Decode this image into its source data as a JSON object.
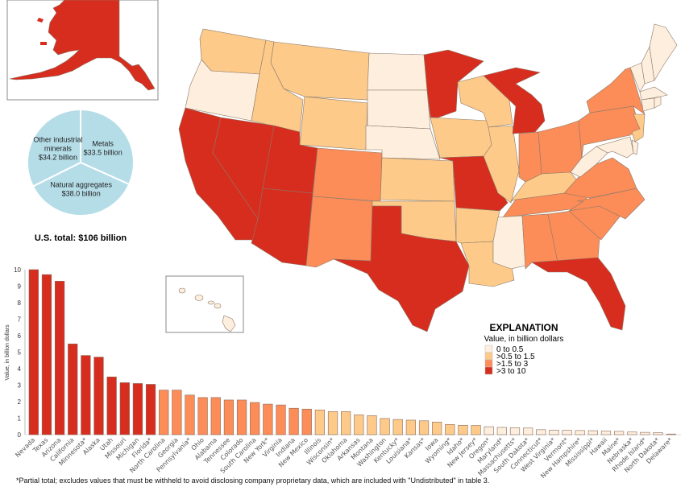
{
  "colors": {
    "class_0_0.5": "#feeedd",
    "class_0.5_1.5": "#fdca8a",
    "class_1.5_3": "#fc8c58",
    "class_3_10": "#d72d1f",
    "pie_fill": "#b5dde8"
  },
  "pie": {
    "slices": [
      {
        "name": "Metals",
        "label_line1": "Metals",
        "label_line2": "$33.5 billion",
        "value": 33.5
      },
      {
        "name": "Natural aggregates",
        "label_line1": "Natural aggregates",
        "label_line2": "$38.0 billion",
        "value": 38.0
      },
      {
        "name": "Other industrial minerals",
        "label_line1": "Other industrial",
        "label_line1b": "minerals",
        "label_line2": "$34.2 billion",
        "value": 34.2
      }
    ],
    "total_label": "U.S. total: $106 billion"
  },
  "legend": {
    "title": "EXPLANATION",
    "subtitle": "Value, in billion dollars",
    "items": [
      {
        "label": "0 to 0.5",
        "color": "#feeedd"
      },
      {
        "label": ">0.5 to 1.5",
        "color": "#fdca8a"
      },
      {
        "label": ">1.5 to 3",
        "color": "#fc8c58"
      },
      {
        "label": ">3 to 10",
        "color": "#d72d1f"
      }
    ]
  },
  "footnote": "*Partial total; excludes values that must be withheld to avoid disclosing company proprietary data, which are included with \"Undistributed\" in table 3.",
  "chart_data": {
    "type": "bar",
    "title": "",
    "xlabel": "",
    "ylabel": "Value, in billion dollars",
    "ylim": [
      0,
      10
    ],
    "yticks": [
      0,
      1,
      2,
      3,
      4,
      5,
      6,
      7,
      8,
      9,
      10
    ],
    "grid": false,
    "categories": [
      "Nevada",
      "Texas",
      "Arizona",
      "California",
      "Minnesota*",
      "Alaska",
      "Utah",
      "Missouri",
      "Michigan",
      "Florida*",
      "North Carolina",
      "Georgia",
      "Pennsylvania*",
      "Ohio",
      "Alabama",
      "Tennessee",
      "Colorado",
      "South Carolina",
      "New York*",
      "Virginia",
      "Indiana",
      "New Mexico",
      "Illinois",
      "Wisconsin*",
      "Oklahoma",
      "Arkansas",
      "Montana",
      "Washington",
      "Kentucky*",
      "Louisiana*",
      "Kansas*",
      "Iowa",
      "Wyoming*",
      "Idaho*",
      "New Jersey*",
      "Oregon*",
      "Maryland*",
      "Massachusetts*",
      "South Dakota*",
      "Connecticut*",
      "West Virginia*",
      "Vermont*",
      "New Hampshire*",
      "Mississippi*",
      "Hawaii",
      "Maine*",
      "Nebraska*",
      "Rhode Island*",
      "North Dakota*",
      "Delaware*"
    ],
    "values": [
      10.0,
      9.7,
      9.3,
      5.5,
      4.8,
      4.7,
      3.5,
      3.15,
      3.1,
      3.05,
      2.7,
      2.7,
      2.4,
      2.25,
      2.25,
      2.1,
      2.1,
      1.95,
      1.85,
      1.8,
      1.6,
      1.55,
      1.5,
      1.4,
      1.4,
      1.2,
      1.15,
      0.98,
      0.92,
      0.88,
      0.84,
      0.76,
      0.62,
      0.57,
      0.56,
      0.48,
      0.44,
      0.42,
      0.4,
      0.3,
      0.28,
      0.26,
      0.25,
      0.24,
      0.22,
      0.2,
      0.16,
      0.14,
      0.12,
      0.02
    ],
    "color_classes": [
      {
        "min": 0,
        "max": 0.5,
        "color": "#feeedd"
      },
      {
        "min": 0.5,
        "max": 1.5,
        "color": "#fdca8a"
      },
      {
        "min": 1.5,
        "max": 3,
        "color": "#fc8c58"
      },
      {
        "min": 3,
        "max": 10,
        "color": "#d72d1f"
      }
    ]
  }
}
